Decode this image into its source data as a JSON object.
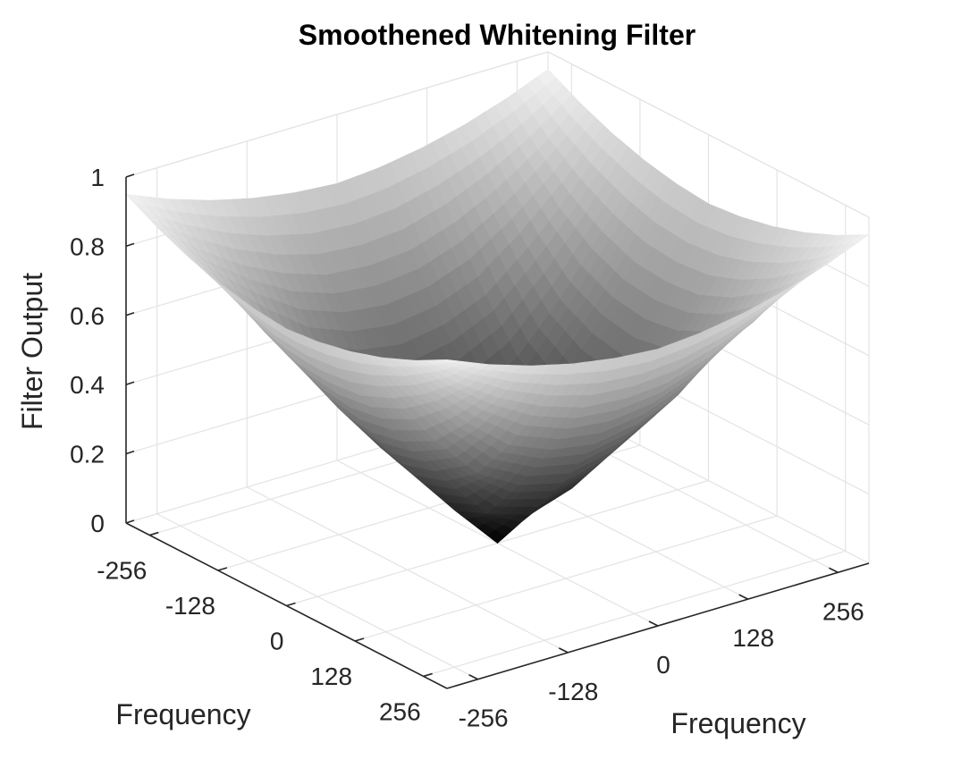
{
  "chart_data": {
    "type": "surface",
    "title": "Smoothened Whitening Filter",
    "xlabel": "Frequency",
    "ylabel": "Frequency",
    "zlabel": "Filter Output",
    "xticks": [
      "-256",
      "-128",
      "0",
      "128",
      "256"
    ],
    "yticks": [
      "-256",
      "-128",
      "0",
      "128",
      "256"
    ],
    "zticks": [
      "0",
      "0.2",
      "0.4",
      "0.6",
      "0.8",
      "1"
    ],
    "xlim": [
      -300,
      300
    ],
    "ylim": [
      -300,
      300
    ],
    "zlim": [
      0,
      1
    ],
    "grid": true,
    "colormap": "gray",
    "surface": {
      "x": [
        -300,
        -240,
        -180,
        -120,
        -60,
        0,
        60,
        120,
        180,
        240,
        300
      ],
      "y": [
        -300,
        -240,
        -180,
        -120,
        -60,
        0,
        60,
        120,
        180,
        240,
        300
      ],
      "z": [
        [
          0.95,
          0.9,
          0.86,
          0.83,
          0.81,
          0.8,
          0.81,
          0.83,
          0.86,
          0.9,
          0.95
        ],
        [
          0.9,
          0.8,
          0.72,
          0.66,
          0.62,
          0.61,
          0.62,
          0.66,
          0.72,
          0.8,
          0.9
        ],
        [
          0.86,
          0.72,
          0.6,
          0.5,
          0.45,
          0.43,
          0.45,
          0.5,
          0.6,
          0.72,
          0.86
        ],
        [
          0.83,
          0.66,
          0.5,
          0.37,
          0.3,
          0.27,
          0.3,
          0.37,
          0.5,
          0.66,
          0.83
        ],
        [
          0.81,
          0.62,
          0.45,
          0.3,
          0.17,
          0.13,
          0.17,
          0.3,
          0.45,
          0.62,
          0.81
        ],
        [
          0.8,
          0.61,
          0.43,
          0.27,
          0.13,
          0.0,
          0.13,
          0.27,
          0.43,
          0.61,
          0.8
        ],
        [
          0.81,
          0.62,
          0.45,
          0.3,
          0.17,
          0.13,
          0.17,
          0.3,
          0.45,
          0.62,
          0.81
        ],
        [
          0.83,
          0.66,
          0.5,
          0.37,
          0.3,
          0.27,
          0.3,
          0.37,
          0.5,
          0.66,
          0.83
        ],
        [
          0.86,
          0.72,
          0.6,
          0.5,
          0.45,
          0.43,
          0.45,
          0.5,
          0.6,
          0.72,
          0.86
        ],
        [
          0.9,
          0.8,
          0.72,
          0.66,
          0.62,
          0.61,
          0.62,
          0.66,
          0.72,
          0.8,
          0.9
        ],
        [
          0.95,
          0.9,
          0.86,
          0.83,
          0.81,
          0.8,
          0.81,
          0.83,
          0.86,
          0.9,
          0.95
        ]
      ]
    }
  }
}
